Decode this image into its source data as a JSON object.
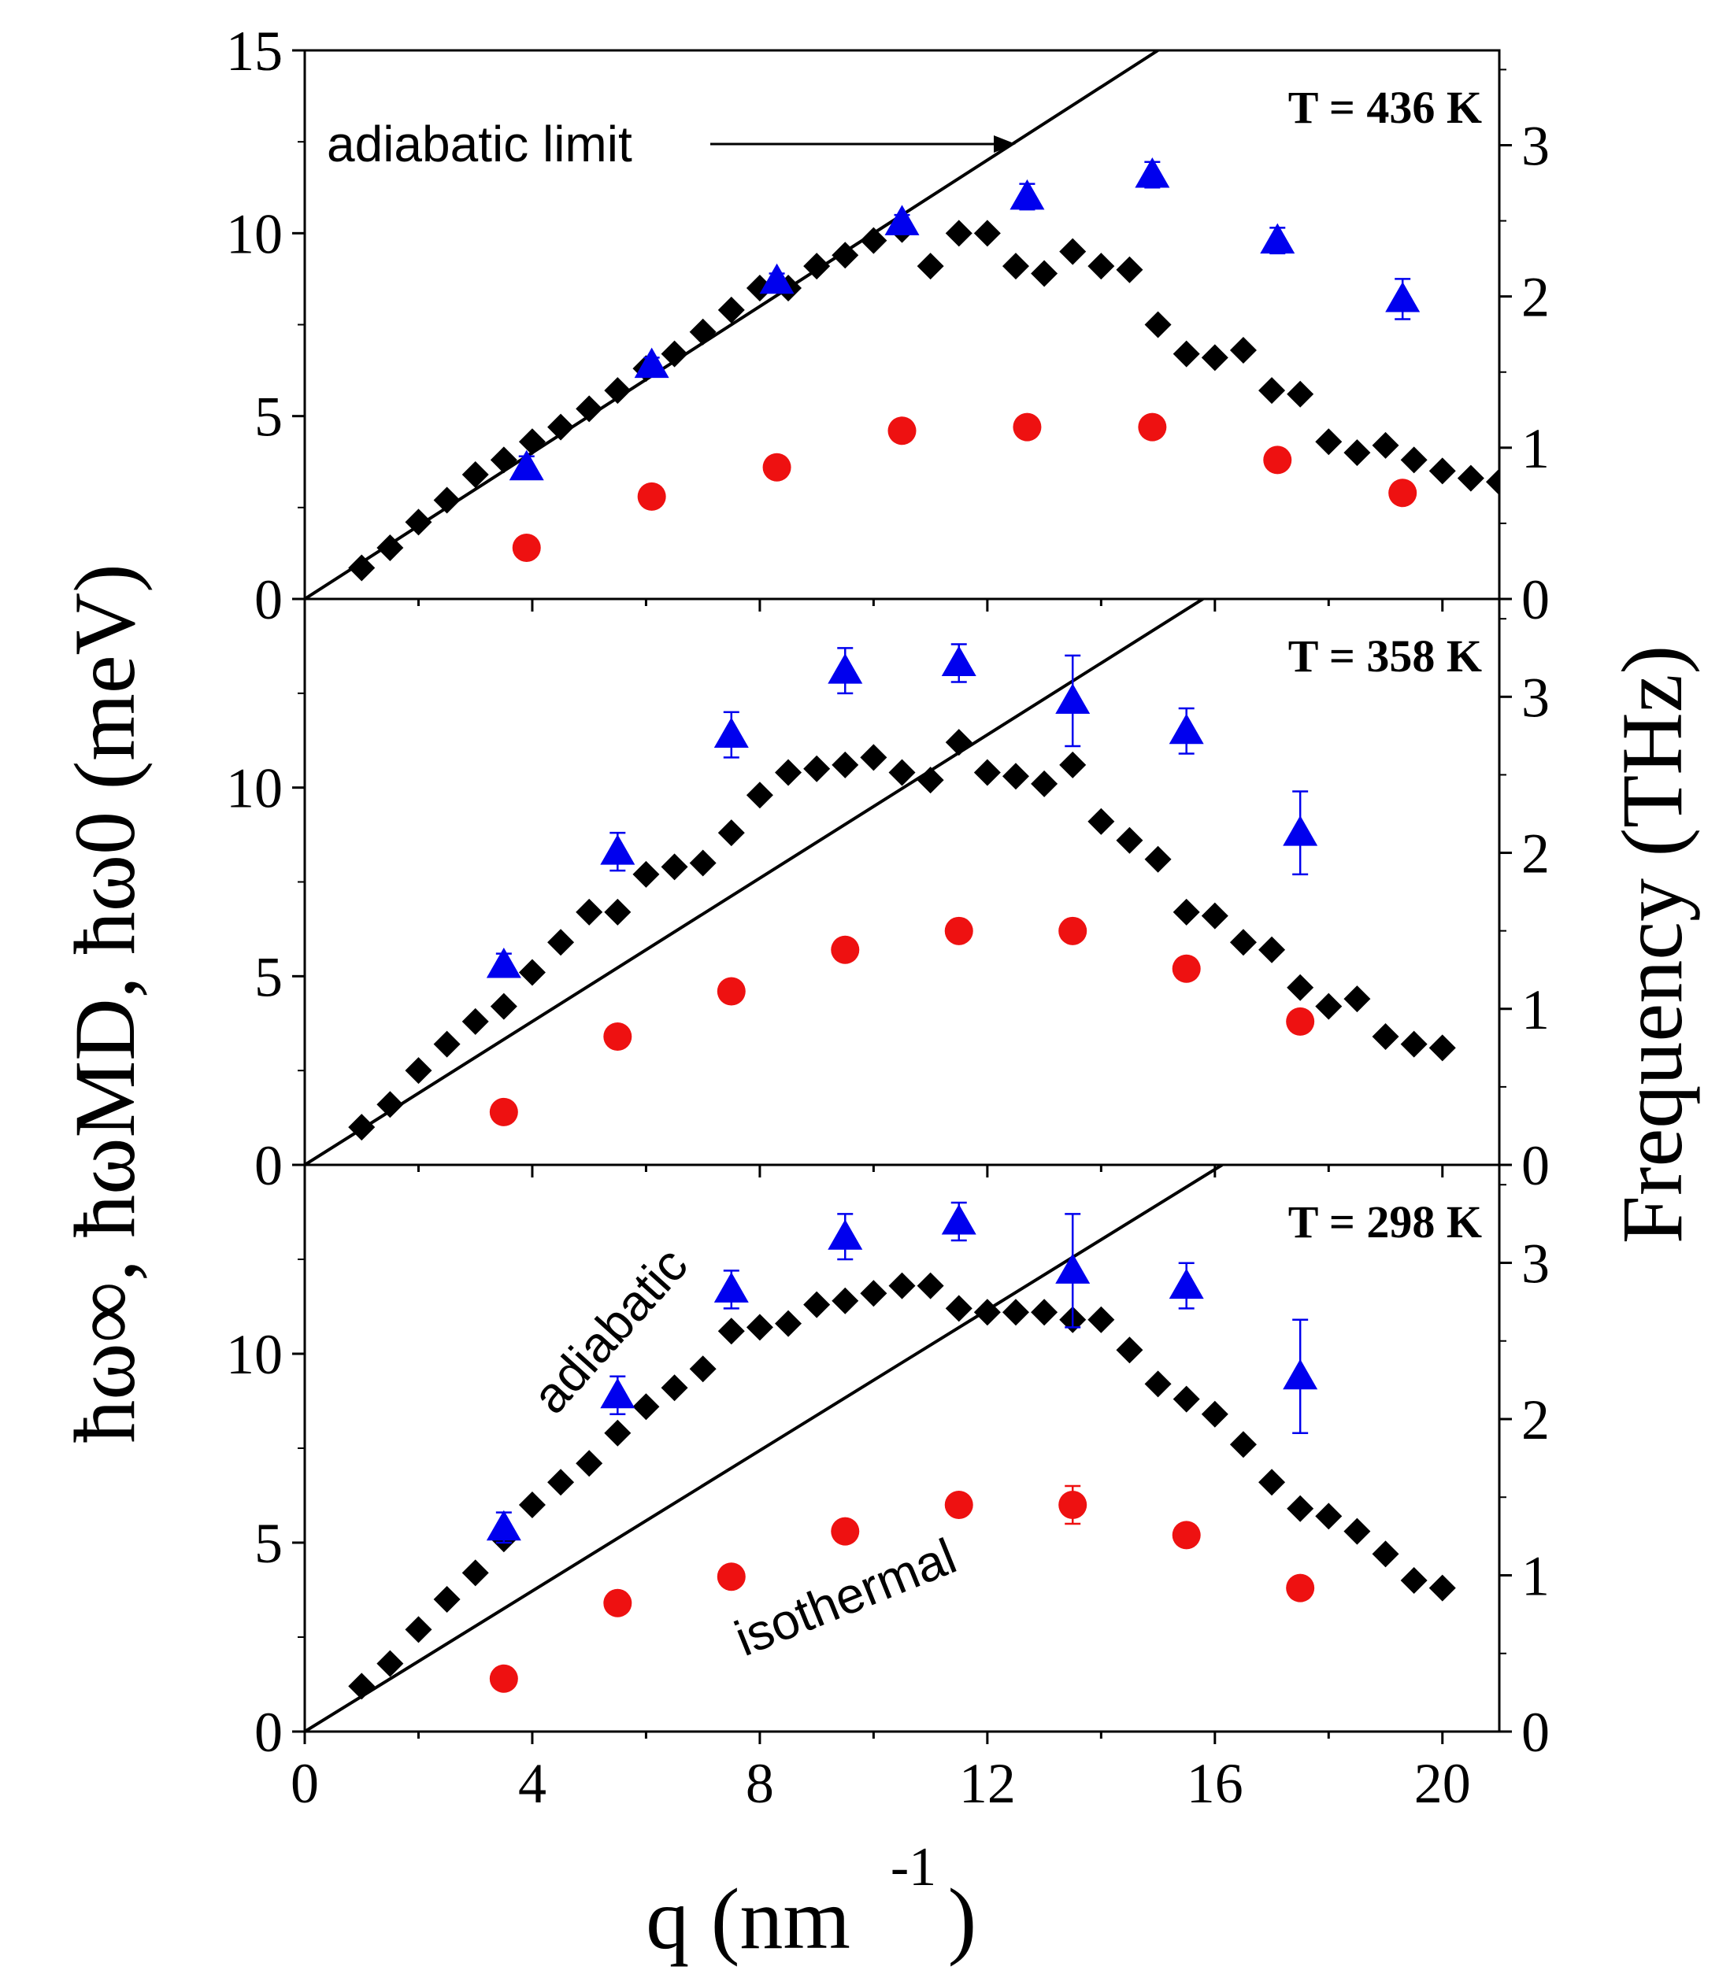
{
  "chart_data": {
    "type": "scatter",
    "x_axis": {
      "label": "q (nm",
      "label_exponent": "-1",
      "label_close": ")",
      "lim": [
        0,
        21
      ],
      "ticks": [
        0,
        4,
        8,
        12,
        16,
        20
      ],
      "tick_labels": [
        "0",
        "4",
        "8",
        "12",
        "16",
        "20"
      ]
    },
    "y_axis_left": {
      "label": "ħω∞, ħωMD, ħω0 (meV)",
      "lim": [
        0,
        15
      ],
      "ticks": [
        0,
        5,
        10,
        15
      ]
    },
    "y_axis_right": {
      "label": "Frequency (THz)",
      "lim": [
        0,
        3.627
      ],
      "ticks": [
        0,
        1,
        2,
        3
      ]
    },
    "panels": [
      {
        "label": "T = 436 K",
        "top_tick_label": "15",
        "left_tick_labels": [
          "0",
          "5",
          "10",
          "15"
        ],
        "right_tick_labels": [
          "0",
          "1",
          "2",
          "3"
        ],
        "adiabatic_slope": 1.0,
        "annotations": [
          {
            "text": "adiabatic limit",
            "kind": "arrow-label"
          }
        ],
        "series": [
          {
            "name": "ħω_MD",
            "marker": "diamond",
            "color": "#000000",
            "x": [
              1.0,
              1.5,
              2.0,
              2.5,
              3.0,
              3.5,
              4.0,
              4.5,
              5.0,
              5.5,
              6.0,
              6.5,
              7.0,
              7.5,
              8.0,
              8.5,
              9.0,
              9.5,
              10.0,
              10.5,
              11.0,
              11.5,
              12.0,
              12.5,
              13.0,
              13.5,
              14.0,
              14.5,
              15.0,
              15.5,
              16.0,
              16.5,
              17.0,
              17.5,
              18.0,
              18.5,
              19.0,
              19.5,
              20.0,
              20.5,
              21.0
            ],
            "y": [
              0.85,
              1.4,
              2.1,
              2.7,
              3.4,
              3.8,
              4.3,
              4.7,
              5.2,
              5.7,
              6.3,
              6.7,
              7.3,
              7.9,
              8.5,
              8.5,
              9.1,
              9.4,
              9.8,
              10.1,
              9.1,
              10.0,
              10.0,
              9.1,
              8.9,
              9.5,
              9.1,
              9.0,
              7.5,
              6.7,
              6.6,
              6.8,
              5.7,
              5.6,
              4.3,
              4.0,
              4.2,
              3.8,
              3.5,
              3.3,
              3.2
            ]
          },
          {
            "name": "ħω∞",
            "marker": "triangle",
            "color": "#0000ee",
            "x": [
              3.9,
              6.1,
              8.3,
              10.5,
              12.7,
              14.9,
              17.1,
              19.3
            ],
            "y": [
              3.6,
              6.4,
              8.7,
              10.3,
              11.0,
              11.6,
              9.8,
              8.2
            ],
            "err": [
              0.3,
              0.2,
              0.2,
              0.2,
              0.35,
              0.35,
              0.35,
              0.55
            ]
          },
          {
            "name": "ħω0",
            "marker": "circle",
            "color": "#ee1111",
            "x": [
              3.9,
              6.1,
              8.3,
              10.5,
              12.7,
              14.9,
              17.1,
              19.3
            ],
            "y": [
              1.4,
              2.8,
              3.6,
              4.6,
              4.7,
              4.7,
              3.8,
              2.9
            ]
          }
        ]
      },
      {
        "label": "T = 358 K",
        "top_tick_label": "",
        "left_tick_labels": [
          "0",
          "5",
          "10",
          ""
        ],
        "right_tick_labels": [
          "0",
          "1",
          "2",
          "3"
        ],
        "adiabatic_slope": 0.95,
        "annotations": [],
        "series": [
          {
            "name": "ħω_MD",
            "marker": "diamond",
            "color": "#000000",
            "x": [
              1.0,
              1.5,
              2.0,
              2.5,
              3.0,
              3.5,
              4.0,
              4.5,
              5.0,
              5.5,
              6.0,
              6.5,
              7.0,
              7.5,
              8.0,
              8.5,
              9.0,
              9.5,
              10.0,
              10.5,
              11.0,
              11.5,
              12.0,
              12.5,
              13.0,
              13.5,
              14.0,
              14.5,
              15.0,
              15.5,
              16.0,
              16.5,
              17.0,
              17.5,
              18.0,
              18.5,
              19.0,
              19.5,
              20.0
            ],
            "y": [
              1.0,
              1.6,
              2.5,
              3.2,
              3.8,
              4.2,
              5.1,
              5.9,
              6.7,
              6.7,
              7.7,
              7.9,
              8.0,
              8.8,
              9.8,
              10.4,
              10.5,
              10.6,
              10.8,
              10.4,
              10.2,
              11.2,
              10.4,
              10.3,
              10.1,
              10.6,
              9.1,
              8.6,
              8.1,
              6.7,
              6.6,
              5.9,
              5.7,
              4.7,
              4.2,
              4.4,
              3.4,
              3.2,
              3.1
            ]
          },
          {
            "name": "ħω∞",
            "marker": "triangle",
            "color": "#0000ee",
            "x": [
              3.5,
              5.5,
              7.5,
              9.5,
              11.5,
              13.5,
              15.5,
              17.5
            ],
            "y": [
              5.3,
              8.3,
              11.4,
              13.1,
              13.3,
              12.3,
              11.5,
              8.8
            ],
            "err": [
              0.3,
              0.5,
              0.6,
              0.6,
              0.5,
              1.2,
              0.6,
              1.1
            ]
          },
          {
            "name": "ħω0",
            "marker": "circle",
            "color": "#ee1111",
            "x": [
              3.5,
              5.5,
              7.5,
              9.5,
              11.5,
              13.5,
              15.5,
              17.5
            ],
            "y": [
              1.4,
              3.4,
              4.6,
              5.7,
              6.2,
              6.2,
              5.2,
              3.8
            ]
          }
        ]
      },
      {
        "label": "T = 298 K",
        "top_tick_label": "",
        "left_tick_labels": [
          "0",
          "5",
          "10",
          ""
        ],
        "right_tick_labels": [
          "0",
          "1",
          "2",
          "3"
        ],
        "adiabatic_slope": 0.93,
        "annotations": [
          {
            "text": "adiabatic",
            "kind": "rotated-label"
          },
          {
            "text": "isothermal",
            "kind": "rotated-label"
          }
        ],
        "series": [
          {
            "name": "ħω_MD",
            "marker": "diamond",
            "color": "#000000",
            "x": [
              1.0,
              1.5,
              2.0,
              2.5,
              3.0,
              3.5,
              4.0,
              4.5,
              5.0,
              5.5,
              6.0,
              6.5,
              7.0,
              7.5,
              8.0,
              8.5,
              9.0,
              9.5,
              10.0,
              10.5,
              11.0,
              11.5,
              12.0,
              12.5,
              13.0,
              13.5,
              14.0,
              14.5,
              15.0,
              15.5,
              16.0,
              16.5,
              17.0,
              17.5,
              18.0,
              18.5,
              19.0,
              19.5,
              20.0
            ],
            "y": [
              1.2,
              1.8,
              2.7,
              3.5,
              4.2,
              5.1,
              6.0,
              6.6,
              7.1,
              7.9,
              8.6,
              9.1,
              9.6,
              10.6,
              10.7,
              10.8,
              11.3,
              11.4,
              11.6,
              11.8,
              11.8,
              11.2,
              11.1,
              11.1,
              11.1,
              10.9,
              10.9,
              10.1,
              9.2,
              8.8,
              8.4,
              7.6,
              6.6,
              5.9,
              5.7,
              5.3,
              4.7,
              4.0,
              3.8
            ]
          },
          {
            "name": "ħω∞",
            "marker": "triangle",
            "color": "#0000ee",
            "x": [
              3.5,
              5.5,
              7.5,
              9.5,
              11.5,
              13.5,
              15.5,
              17.5
            ],
            "y": [
              5.4,
              8.9,
              11.7,
              13.1,
              13.5,
              12.2,
              11.8,
              9.4
            ],
            "err": [
              0.4,
              0.5,
              0.5,
              0.6,
              0.5,
              1.5,
              0.6,
              1.5
            ]
          },
          {
            "name": "ħω0",
            "marker": "circle",
            "color": "#ee1111",
            "x": [
              3.5,
              5.5,
              7.5,
              9.5,
              11.5,
              13.5,
              15.5,
              17.5
            ],
            "y": [
              1.4,
              3.4,
              4.1,
              5.3,
              6.0,
              6.0,
              5.2,
              3.8
            ],
            "err": [
              0,
              0,
              0,
              0,
              0,
              0.5,
              0,
              0
            ]
          }
        ]
      }
    ]
  }
}
